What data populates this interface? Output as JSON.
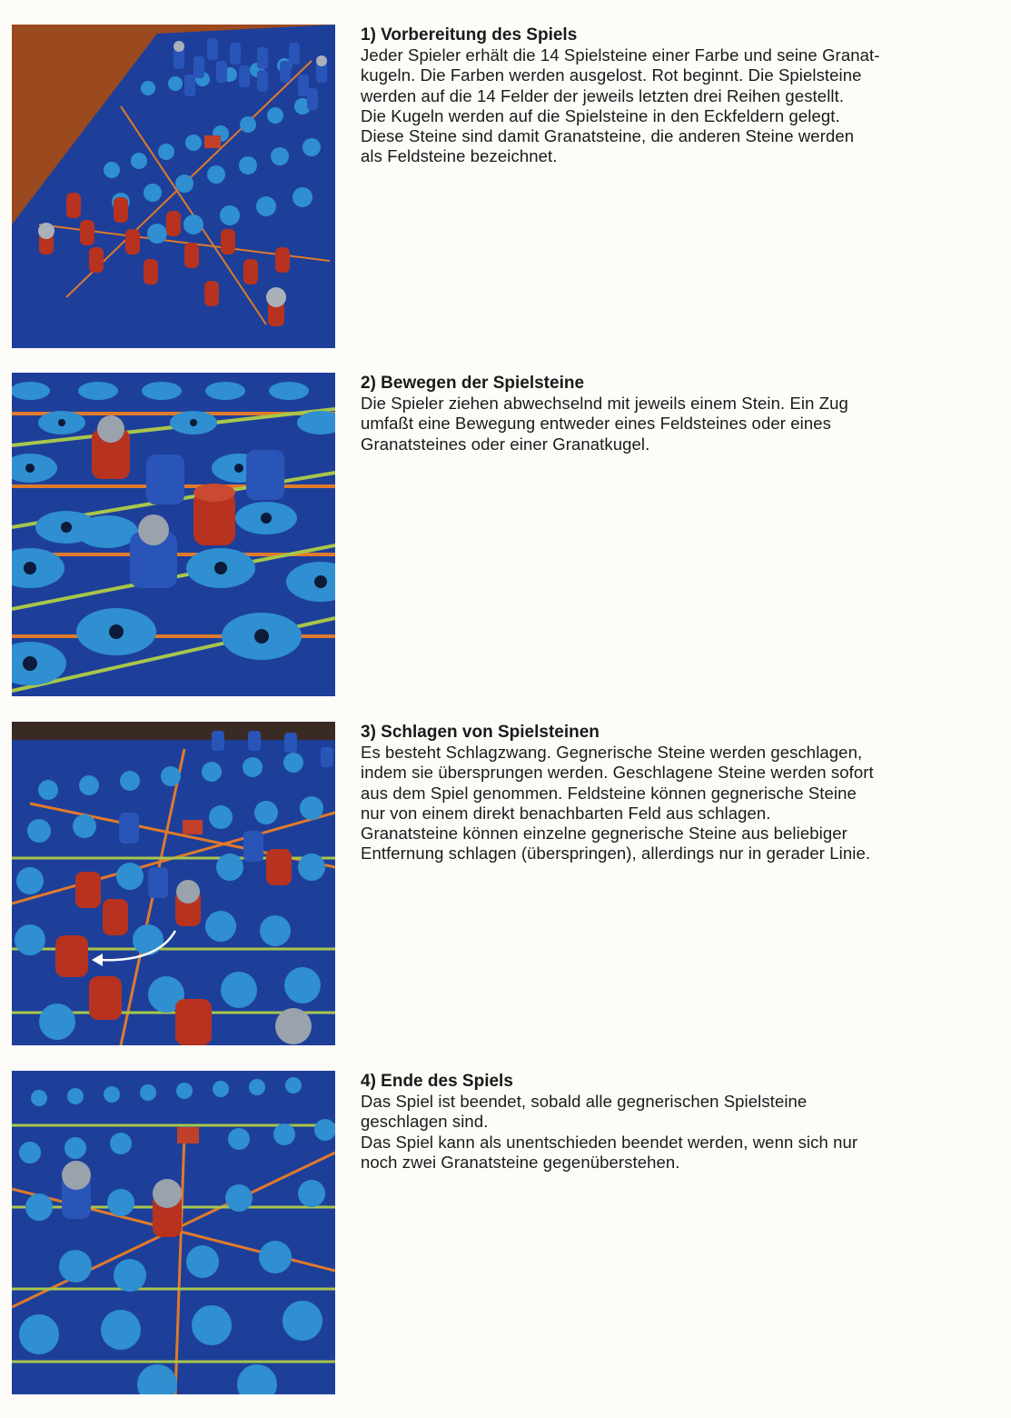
{
  "sections": [
    {
      "title": "1) Vorbereitung des Spiels",
      "body": "Jeder Spieler erhält die 14 Spielsteine einer Farbe und seine Granat-\nkugeln. Die Farben werden ausgelost. Rot beginnt. Die Spielsteine\nwerden auf die 14 Felder der jeweils letzten drei Reihen gestellt.\nDie Kugeln werden auf die Spielsteine in den Eckfeldern gelegt.\nDiese Steine sind damit Granatsteine, die anderen Steine werden\nals Feldsteine bezeichnet."
    },
    {
      "title": "2) Bewegen der Spielsteine",
      "body": "Die Spieler ziehen abwechselnd mit jeweils einem Stein. Ein Zug\numfaßt eine Bewegung entweder eines Feldsteines oder eines\nGranatsteines oder einer Granatkugel."
    },
    {
      "title": "3) Schlagen von Spielsteinen",
      "body": "Es besteht Schlagzwang. Gegnerische Steine werden geschlagen,\nindem sie übersprungen werden. Geschlagene Steine werden sofort\naus dem Spiel genommen. Feldsteine können gegnerische Steine\nnur von einem direkt benachbarten Feld aus schlagen.\nGranatsteine können einzelne gegnerische Steine aus beliebiger\nEntfernung schlagen (überspringen), allerdings nur in gerader Linie."
    },
    {
      "title": "4) Ende des Spiels",
      "body": "Das Spiel ist beendet, sobald alle gegnerischen Spielsteine\ngeschlagen sind.\nDas Spiel kann als unentschieden beendet werden, wenn sich nur\nnoch zwei Granatsteine gegenüberstehen."
    }
  ],
  "colors": {
    "board": "#1d3f9a",
    "field": "#2f8fd0",
    "line_orange": "#e07a2a",
    "line_green": "#a8c64a",
    "red_piece": "#b7321f",
    "blue_piece": "#2a55b8",
    "background": "#fdfcf8"
  }
}
